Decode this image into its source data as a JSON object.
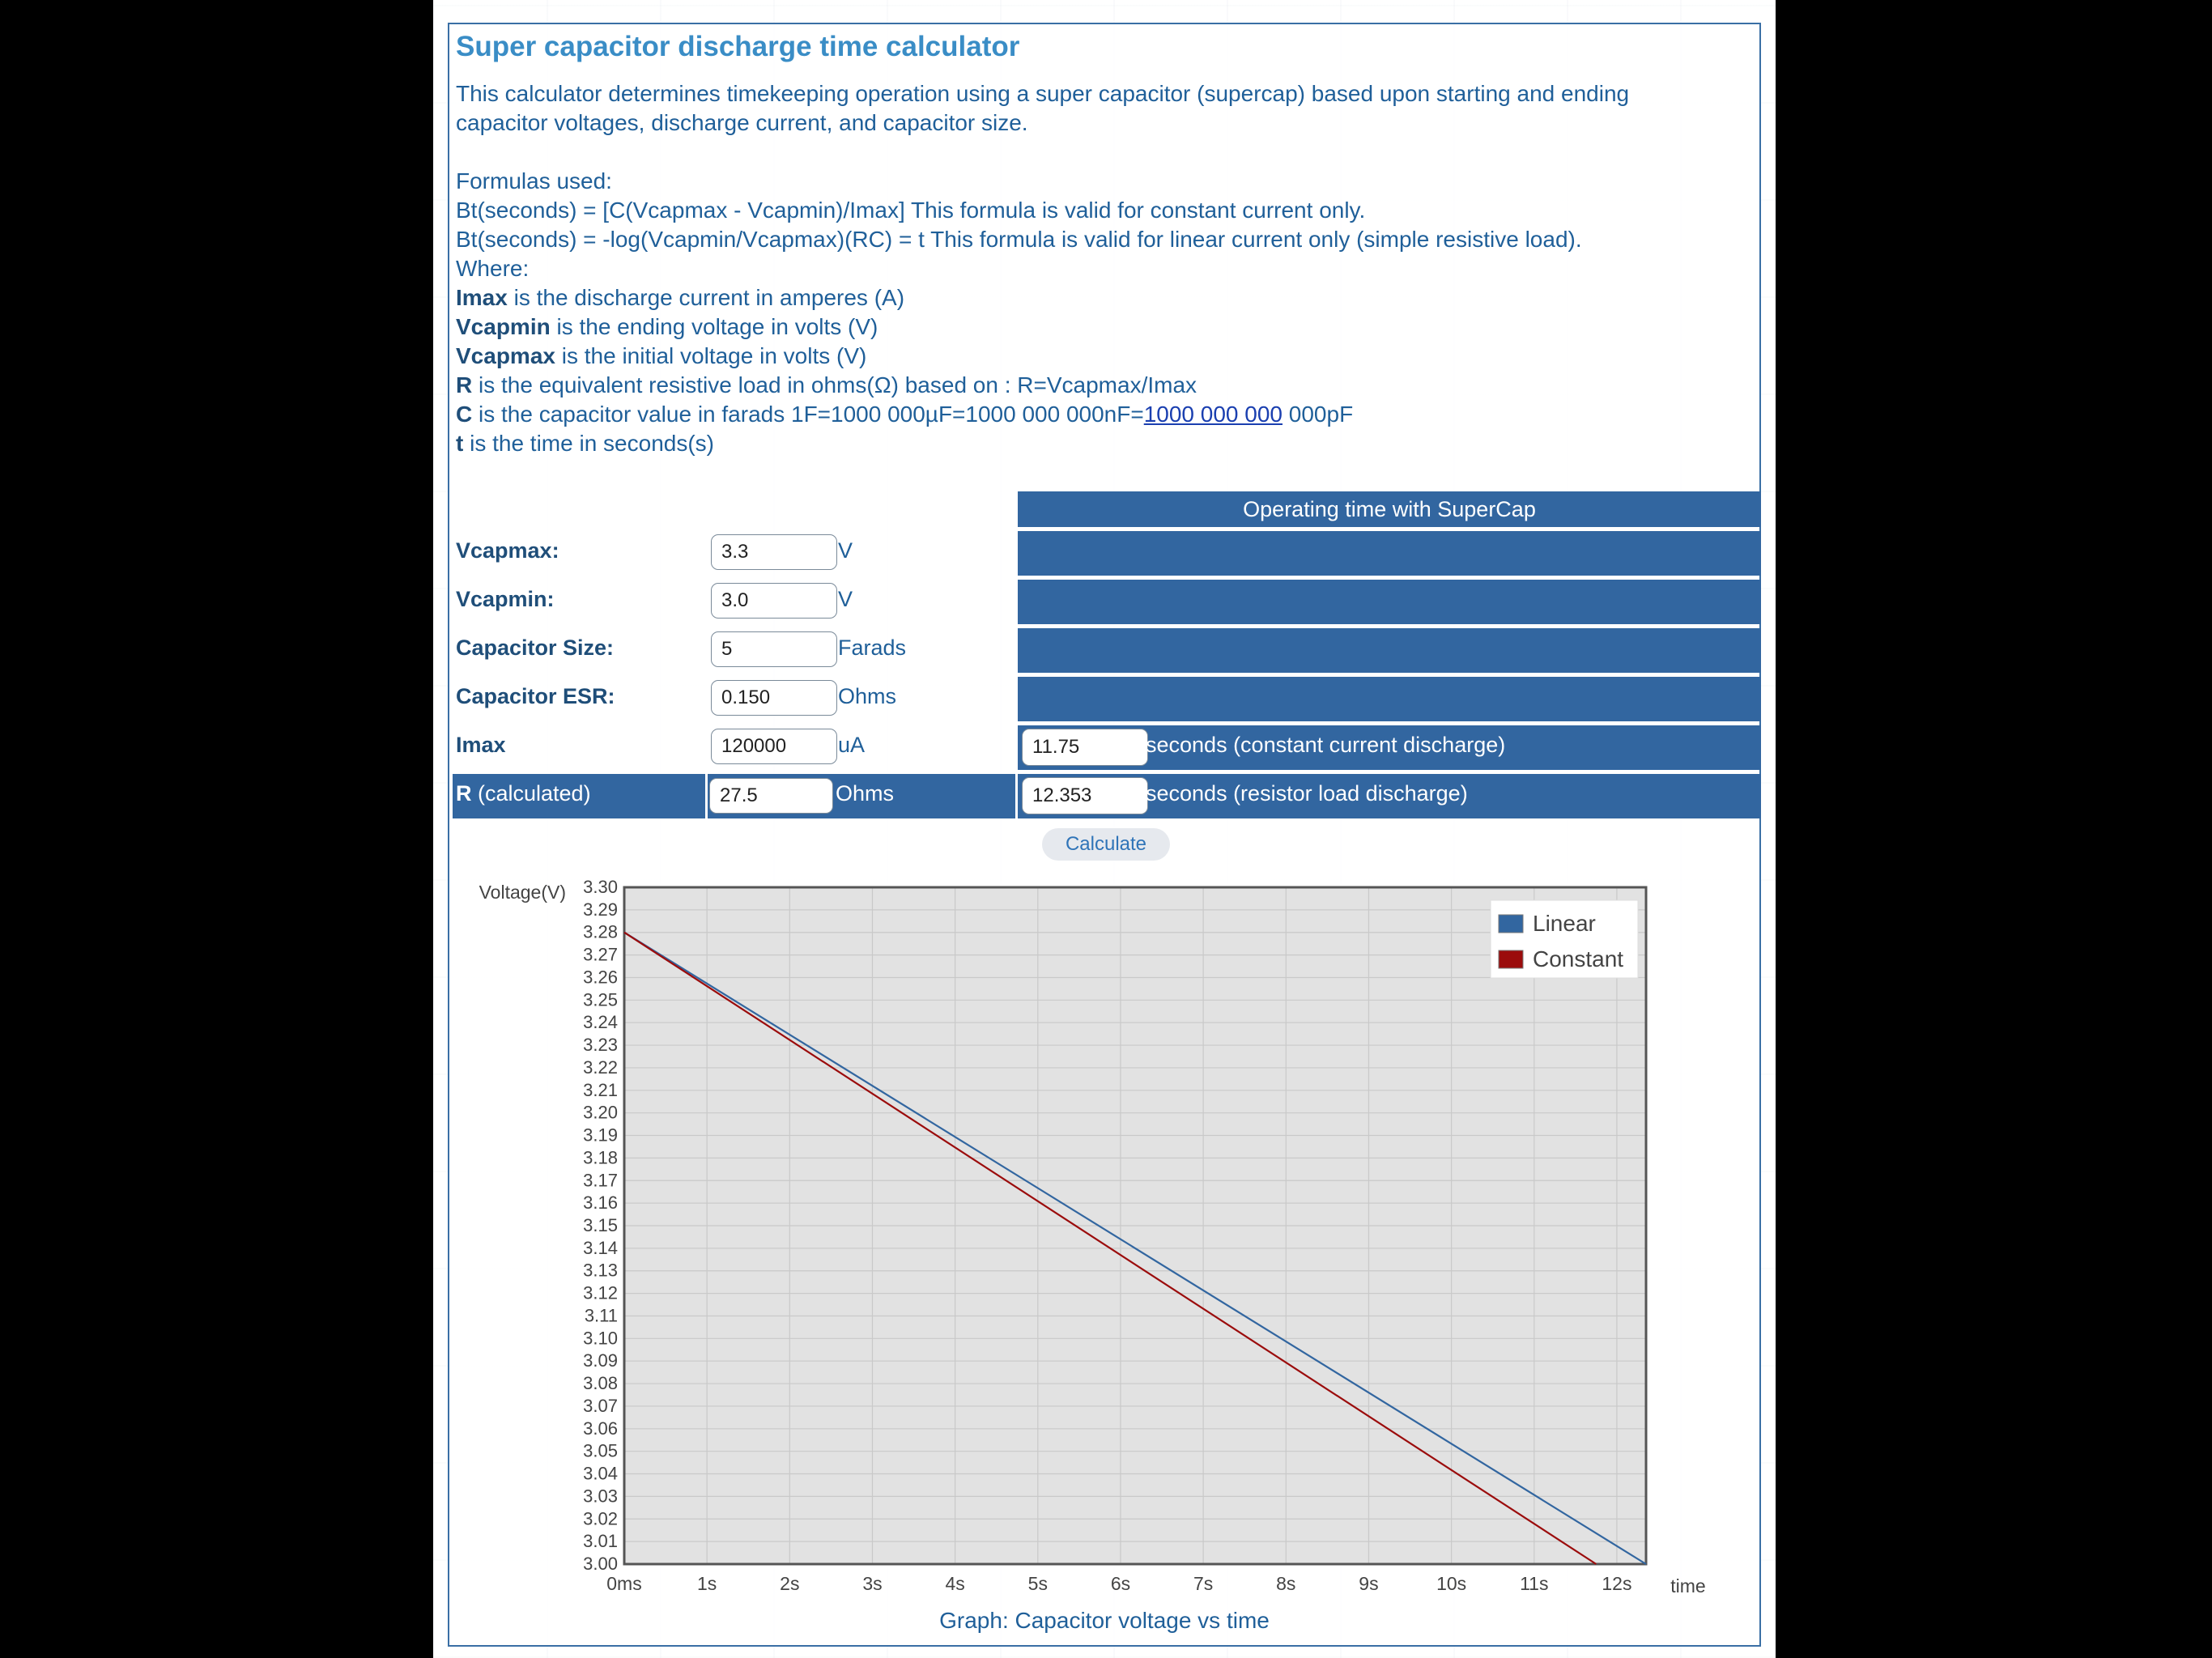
{
  "title": "Super capacitor discharge time calculator",
  "intro": "This calculator determines timekeeping operation using a super capacitor (supercap) based upon starting and ending capacitor voltages, discharge current, and capacitor size.",
  "formulas": {
    "heading": "Formulas used:",
    "f1": "Bt(seconds) = [C(Vcapmax - Vcapmin)/Imax]  This formula is valid for constant current only.",
    "f2": "Bt(seconds) = -log(Vcapmin/Vcapmax)(RC) = t  This formula is valid for linear current only (simple resistive load).",
    "where": "Where:"
  },
  "defs": [
    {
      "term": "Imax",
      "text": " is the discharge current in amperes (A)"
    },
    {
      "term": "Vcapmin",
      "text": " is the ending voltage in volts (V)"
    },
    {
      "term": "Vcapmax",
      "text": " is the initial voltage in volts (V)"
    },
    {
      "term": "R",
      "text": " is the equivalent resistive load in ohms(Ω) based on : R=Vcapmax/Imax"
    },
    {
      "term": "C",
      "text": " is the capacitor value in farads 1F=1000 000µF=1000 000 000nF=",
      "link": "1000 000 000",
      "after": " 000pF"
    },
    {
      "term": "t",
      "text": " is the time in seconds(s)"
    }
  ],
  "results_header": "Operating time with SuperCap",
  "fields": [
    {
      "label": "Vcapmax:",
      "value": "3.3",
      "unit": "V"
    },
    {
      "label": "Vcapmin:",
      "value": "3.0",
      "unit": "V"
    },
    {
      "label": "Capacitor Size:",
      "value": "5",
      "unit": "Farads"
    },
    {
      "label": "Capacitor ESR:",
      "value": "0.150",
      "unit": "Ohms"
    },
    {
      "label": "Imax",
      "value": "120000",
      "unit": "uA"
    }
  ],
  "r_row": {
    "label_bold": "R",
    "label_rest": " (calculated)",
    "value": "27.5",
    "unit": "Ohms"
  },
  "results": [
    {
      "value": "11.75",
      "text": "seconds (constant current discharge)"
    },
    {
      "value": "12.353",
      "text": "seconds (resistor load discharge)"
    }
  ],
  "calculate_label": "Calculate",
  "chart_data": {
    "type": "line",
    "ylabel": "Voltage(V)",
    "xlabel": "time",
    "caption": "Graph: Capacitor voltage vs time",
    "ylim": [
      3.0,
      3.3
    ],
    "xlim": [
      0,
      12.353
    ],
    "yticks": [
      "3.30",
      "3.29",
      "3.28",
      "3.27",
      "3.26",
      "3.25",
      "3.24",
      "3.23",
      "3.22",
      "3.21",
      "3.20",
      "3.19",
      "3.18",
      "3.17",
      "3.16",
      "3.15",
      "3.14",
      "3.13",
      "3.12",
      "3.11",
      "3.10",
      "3.09",
      "3.08",
      "3.07",
      "3.06",
      "3.05",
      "3.04",
      "3.03",
      "3.02",
      "3.01",
      "3.00"
    ],
    "xticks": [
      "0ms",
      "1s",
      "2s",
      "3s",
      "4s",
      "5s",
      "6s",
      "7s",
      "8s",
      "9s",
      "10s",
      "11s",
      "12s"
    ],
    "grid": true,
    "legend_position": "top-right",
    "series": [
      {
        "name": "Linear",
        "color": "#3266a0",
        "x": [
          0,
          12.353
        ],
        "y": [
          3.28,
          3.0
        ]
      },
      {
        "name": "Constant",
        "color": "#9b0c0c",
        "x": [
          0,
          11.75
        ],
        "y": [
          3.28,
          3.0
        ]
      }
    ]
  }
}
